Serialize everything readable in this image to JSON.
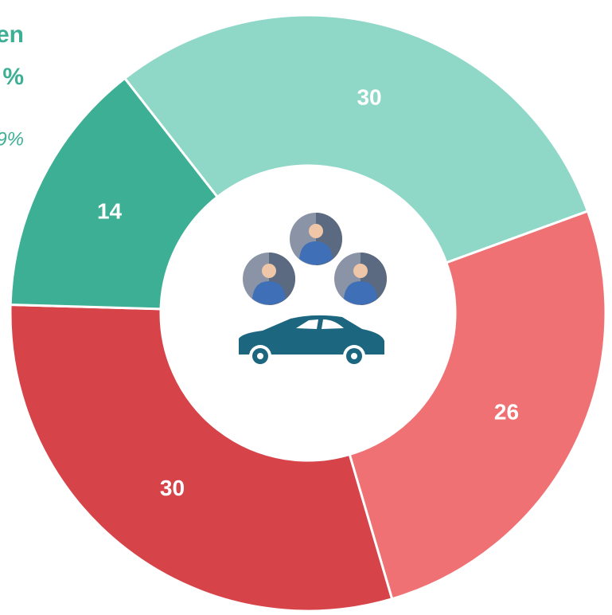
{
  "chart_data": {
    "type": "donut",
    "values": [
      30,
      26,
      30,
      14
    ],
    "colors": [
      "#8fd8c8",
      "#f07174",
      "#d64349",
      "#3daf95"
    ],
    "annotations": [
      "en",
      "%",
      "9%"
    ]
  }
}
